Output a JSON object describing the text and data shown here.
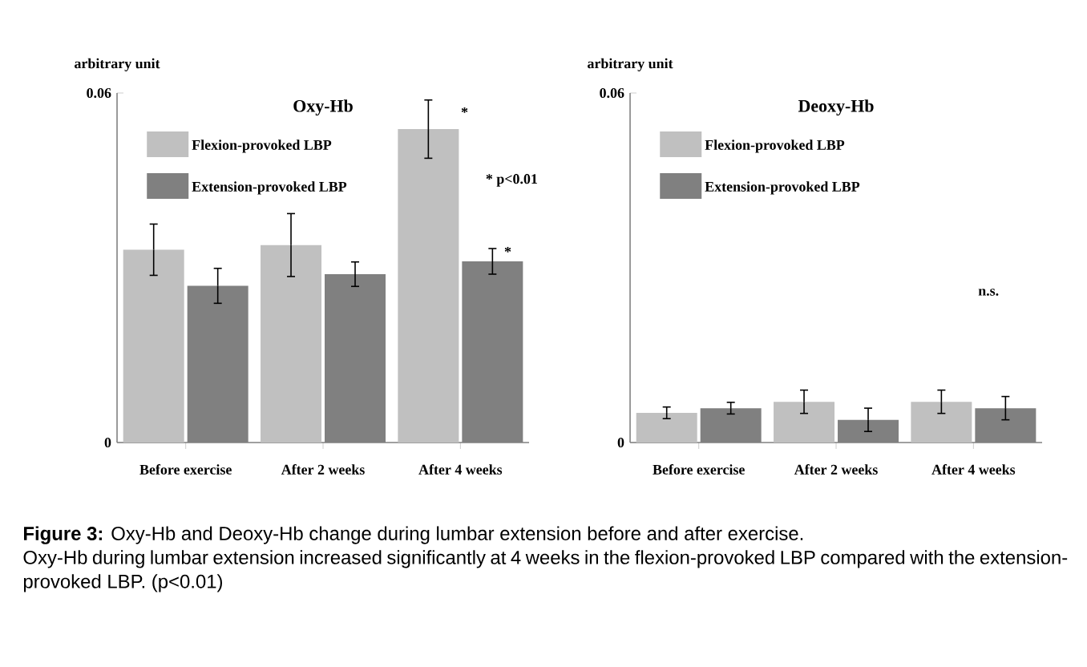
{
  "chart_data": [
    {
      "type": "bar",
      "title": "Oxy-Hb",
      "ylabel": "arbitrary unit",
      "categories": [
        "Before exercise",
        "After 2 weeks",
        "After 4 weeks"
      ],
      "ylim": [
        0,
        0.06
      ],
      "yticks": [
        0,
        0.06
      ],
      "legend": "top left",
      "series": [
        {
          "name": "Flexion-provoked LBP",
          "color": "#c0c0c0",
          "values": [
            0.0331,
            0.0339,
            0.0538
          ],
          "errors": [
            0.0044,
            0.0054,
            0.005
          ]
        },
        {
          "name": "Extension-provoked LBP",
          "color": "#808080",
          "values": [
            0.0269,
            0.0289,
            0.0311
          ],
          "errors": [
            0.003,
            0.0021,
            0.0022
          ]
        }
      ],
      "annotations": [
        "*",
        "* p<0.01",
        "*",
        "**Figure 3:** Oxy-Hb and Deoxy-Hb change during lumbar extension before and after exercise.",
        "Oxy-Hb during lumbar extension increased significantly at 4 weeks in the flexion-provoked LBP compared with the extension-provoked LBP. (p<0.01)"
      ]
    },
    {
      "type": "bar",
      "title": "Deoxy-Hb",
      "ylabel": "arbitrary unit",
      "categories": [
        "Before exercise",
        "After 2 weeks",
        "After 4 weeks"
      ],
      "ylim": [
        0,
        0.06
      ],
      "yticks": [
        0,
        0.06
      ],
      "legend": "top left",
      "series": [
        {
          "name": "Flexion-provoked LBP",
          "color": "#c0c0c0",
          "values": [
            0.0051,
            0.007,
            0.007
          ],
          "errors": [
            0.001,
            0.002,
            0.002
          ]
        },
        {
          "name": "Extension-provoked LBP",
          "color": "#808080",
          "values": [
            0.0059,
            0.0039,
            0.0059
          ],
          "errors": [
            0.001,
            0.002,
            0.002
          ]
        }
      ],
      "annotations": [
        "n.s."
      ]
    }
  ]
}
